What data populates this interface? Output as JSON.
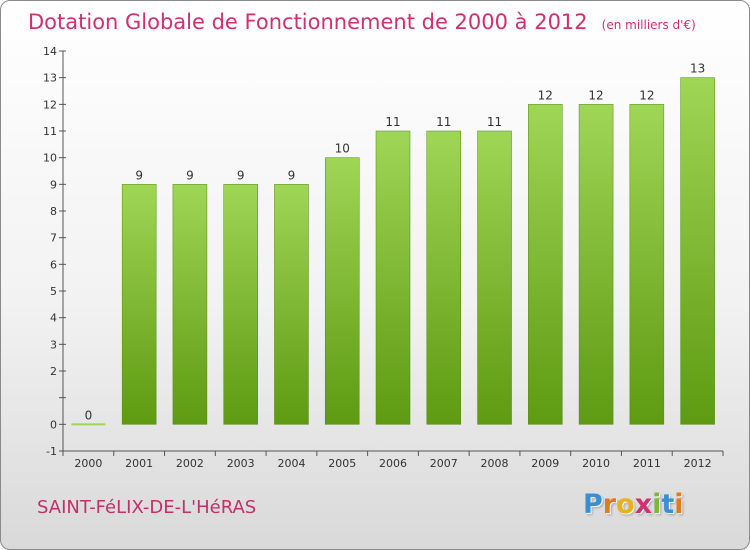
{
  "title": "Dotation Globale de Fonctionnement de 2000 à 2012",
  "subtitle": "(en milliers d'€)",
  "town": "SAINT-FéLIX-DE-L'HéRAS",
  "logo": {
    "letters": [
      "P",
      "r",
      "o",
      "x",
      "i",
      "t",
      "i"
    ],
    "colors": [
      "#3a8fd4",
      "#e07a20",
      "#e9b21c",
      "#d0306e",
      "#7bb83a",
      "#3a8fd4",
      "#e07a20"
    ]
  },
  "colors": {
    "title": "#d0306e",
    "bar_top": "#9fd656",
    "bar_bottom": "#5e9a12",
    "label": "#333333"
  },
  "chart_data": {
    "type": "bar",
    "title": "Dotation Globale de Fonctionnement de 2000 à 2012",
    "subtitle": "(en milliers d'€)",
    "categories": [
      "2000",
      "2001",
      "2002",
      "2003",
      "2004",
      "2005",
      "2006",
      "2007",
      "2008",
      "2009",
      "2010",
      "2011",
      "2012"
    ],
    "values": [
      0,
      9,
      9,
      9,
      9,
      10,
      11,
      11,
      11,
      12,
      12,
      12,
      13
    ],
    "data_labels": [
      "0",
      "9",
      "9",
      "9",
      "9",
      "10",
      "11",
      "11",
      "11",
      "12",
      "12",
      "12",
      "13"
    ],
    "ylim": [
      -1,
      14
    ],
    "yticks": [
      -1,
      0,
      1,
      2,
      3,
      4,
      5,
      6,
      7,
      8,
      9,
      10,
      11,
      12,
      13,
      14
    ],
    "ytick_labels": [
      "-1",
      "0",
      "",
      "2",
      "3",
      "4",
      "5",
      "6",
      "7",
      "8",
      "9",
      "10",
      "11",
      "12",
      "13",
      "14"
    ],
    "xlabel": "",
    "ylabel": "",
    "grid": false,
    "legend": "none"
  }
}
